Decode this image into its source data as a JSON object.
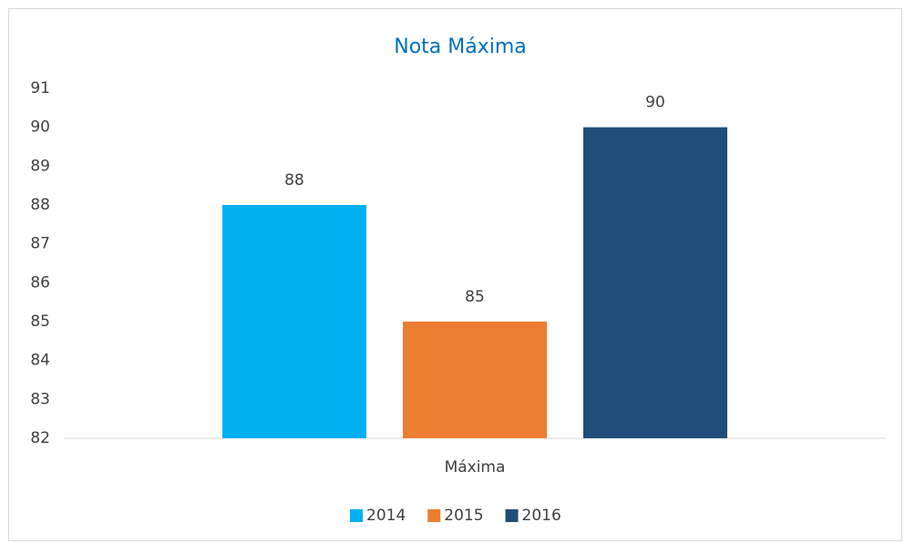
{
  "chart_data": {
    "type": "bar",
    "title": "Nota Máxima",
    "categories": [
      "Máxima"
    ],
    "series": [
      {
        "name": "2014",
        "color": "#00b0f0",
        "values": [
          88
        ]
      },
      {
        "name": "2015",
        "color": "#ed7d31",
        "values": [
          85
        ]
      },
      {
        "name": "2016",
        "color": "#1f4e79",
        "values": [
          90
        ]
      }
    ],
    "ylim": [
      82,
      91
    ],
    "yticks": [
      82,
      83,
      84,
      85,
      86,
      87,
      88,
      89,
      90,
      91
    ],
    "grid": false,
    "legend": "bottom"
  }
}
